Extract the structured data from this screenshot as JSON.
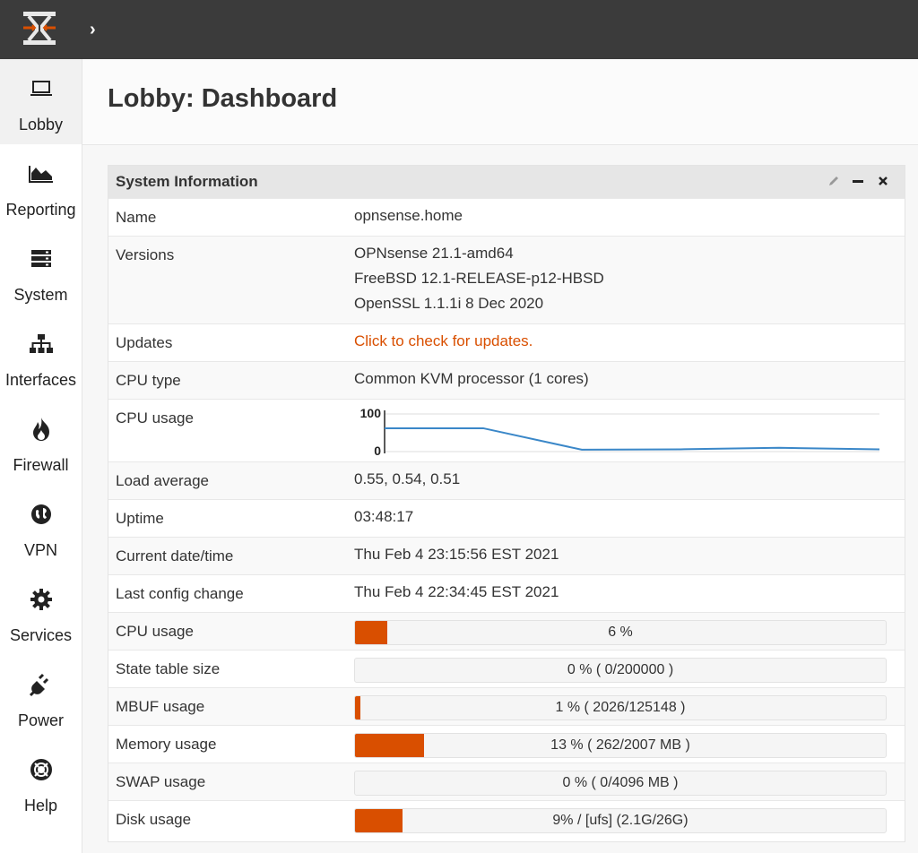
{
  "app": {
    "logo_icon": "opnsense-logo-icon",
    "expand_icon": "chevron-right-icon",
    "accent_color": "#d94f00",
    "topbar_color": "#3b3b3b"
  },
  "sidebar": {
    "items": [
      {
        "label": "Lobby",
        "icon": "laptop-icon",
        "active": true
      },
      {
        "label": "Reporting",
        "icon": "area-chart-icon"
      },
      {
        "label": "System",
        "icon": "server-icon"
      },
      {
        "label": "Interfaces",
        "icon": "sitemap-icon"
      },
      {
        "label": "Firewall",
        "icon": "fire-icon"
      },
      {
        "label": "VPN",
        "icon": "globe-icon"
      },
      {
        "label": "Services",
        "icon": "cog-icon"
      },
      {
        "label": "Power",
        "icon": "plug-icon"
      },
      {
        "label": "Help",
        "icon": "life-ring-icon"
      }
    ]
  },
  "page": {
    "title": "Lobby: Dashboard"
  },
  "widget": {
    "title": "System Information",
    "buttons": [
      "pencil-icon",
      "minimize-icon",
      "close-icon"
    ],
    "rows": {
      "name": {
        "label": "Name",
        "value": "opnsense.home"
      },
      "versions": {
        "label": "Versions",
        "lines": [
          "OPNsense 21.1-amd64",
          "FreeBSD 12.1-RELEASE-p12-HBSD",
          "OpenSSL 1.1.1i 8 Dec 2020"
        ]
      },
      "updates": {
        "label": "Updates",
        "value": "Click to check for updates."
      },
      "cpu_type": {
        "label": "CPU type",
        "value": "Common KVM processor (1 cores)"
      },
      "cpu_graph": {
        "label": "CPU usage",
        "ymax_label": "100",
        "ymin_label": "0"
      },
      "load": {
        "label": "Load average",
        "value": "0.55, 0.54, 0.51"
      },
      "uptime": {
        "label": "Uptime",
        "value": "03:48:17"
      },
      "datetime": {
        "label": "Current date/time",
        "value": "Thu Feb 4 23:15:56 EST 2021"
      },
      "config": {
        "label": "Last config change",
        "value": "Thu Feb 4 22:34:45 EST 2021"
      }
    },
    "bars": [
      {
        "label": "CPU usage",
        "text": "6 %",
        "fraction": 0.06
      },
      {
        "label": "State table size",
        "text": "0 % ( 0/200000 )",
        "fraction": 0.0
      },
      {
        "label": "MBUF usage",
        "text": "1 % ( 2026/125148 )",
        "fraction": 0.01
      },
      {
        "label": "Memory usage",
        "text": "13 % ( 262/2007 MB )",
        "fraction": 0.13
      },
      {
        "label": "SWAP usage",
        "text": "0 % ( 0/4096 MB )",
        "fraction": 0.0
      },
      {
        "label": "Disk usage",
        "text": "9% / [ufs] (2.1G/26G)",
        "fraction": 0.09
      }
    ]
  },
  "chart_data": {
    "type": "line",
    "ylim": [
      0,
      100
    ],
    "series": [
      {
        "values": [
          62,
          62,
          5,
          6,
          10,
          6
        ]
      }
    ]
  }
}
